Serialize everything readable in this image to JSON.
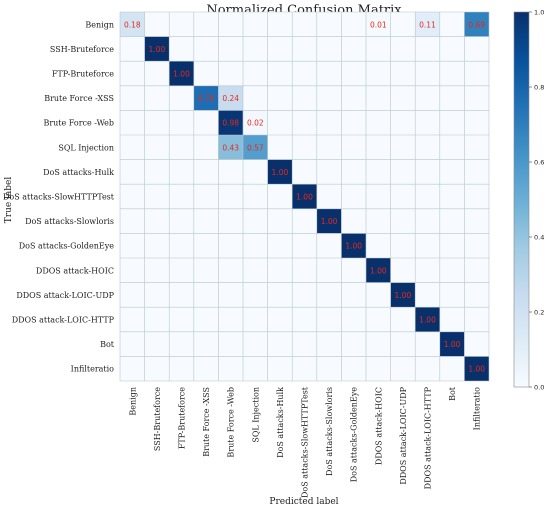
{
  "chart_data": {
    "type": "heatmap",
    "title": "Normalized Confusion Matrix",
    "xlabel": "Predicted label",
    "ylabel": "True label",
    "labels": [
      "Benign",
      "SSH-Bruteforce",
      "FTP-Bruteforce",
      "Brute Force -XSS",
      "Brute Force -Web",
      "SQL Injection",
      "DoS attacks-Hulk",
      "DoS attacks-SlowHTTPTest",
      "DoS attacks-Slowloris",
      "DoS attacks-GoldenEye",
      "DDOS attack-HOIC",
      "DDOS attack-LOIC-UDP",
      "DDOS attack-LOIC-HTTP",
      "Bot",
      "Infilteratio"
    ],
    "values": [
      [
        0.18,
        0,
        0,
        0,
        0,
        0,
        0,
        0,
        0,
        0,
        0.01,
        0,
        0.11,
        0,
        0.69
      ],
      [
        0,
        1.0,
        0,
        0,
        0,
        0,
        0,
        0,
        0,
        0,
        0,
        0,
        0,
        0,
        0
      ],
      [
        0,
        0,
        1.0,
        0,
        0,
        0,
        0,
        0,
        0,
        0,
        0,
        0,
        0,
        0,
        0
      ],
      [
        0,
        0,
        0,
        0.76,
        0.24,
        0,
        0,
        0,
        0,
        0,
        0,
        0,
        0,
        0,
        0
      ],
      [
        0,
        0,
        0,
        0,
        0.98,
        0.02,
        0,
        0,
        0,
        0,
        0,
        0,
        0,
        0,
        0
      ],
      [
        0,
        0,
        0,
        0,
        0.43,
        0.57,
        0,
        0,
        0,
        0,
        0,
        0,
        0,
        0,
        0
      ],
      [
        0,
        0,
        0,
        0,
        0,
        0,
        1.0,
        0,
        0,
        0,
        0,
        0,
        0,
        0,
        0
      ],
      [
        0,
        0,
        0,
        0,
        0,
        0,
        0,
        1.0,
        0,
        0,
        0,
        0,
        0,
        0,
        0
      ],
      [
        0,
        0,
        0,
        0,
        0,
        0,
        0,
        0,
        1.0,
        0,
        0,
        0,
        0,
        0,
        0
      ],
      [
        0,
        0,
        0,
        0,
        0,
        0,
        0,
        0,
        0,
        1.0,
        0,
        0,
        0,
        0,
        0
      ],
      [
        0,
        0,
        0,
        0,
        0,
        0,
        0,
        0,
        0,
        0,
        1.0,
        0,
        0,
        0,
        0
      ],
      [
        0,
        0,
        0,
        0,
        0,
        0,
        0,
        0,
        0,
        0,
        0,
        1.0,
        0,
        0,
        0
      ],
      [
        0,
        0,
        0,
        0,
        0,
        0,
        0,
        0,
        0,
        0,
        0,
        0,
        1.0,
        0,
        0
      ],
      [
        0,
        0,
        0,
        0,
        0,
        0,
        0,
        0,
        0,
        0,
        0,
        0,
        0,
        1.0,
        0
      ],
      [
        0,
        0,
        0,
        0,
        0,
        0,
        0,
        0,
        0,
        0,
        0,
        0,
        0,
        0,
        1.0
      ]
    ],
    "colorbar": {
      "range": [
        0.0,
        1.0
      ],
      "ticks": [
        "0.0",
        "0.2",
        "0.4",
        "0.6",
        "0.8",
        "1.0"
      ],
      "colormap": "Blues",
      "low_color": "#f7fbff",
      "high_color": "#08306b"
    },
    "annotation_color": "#e8291c",
    "grid": true
  }
}
